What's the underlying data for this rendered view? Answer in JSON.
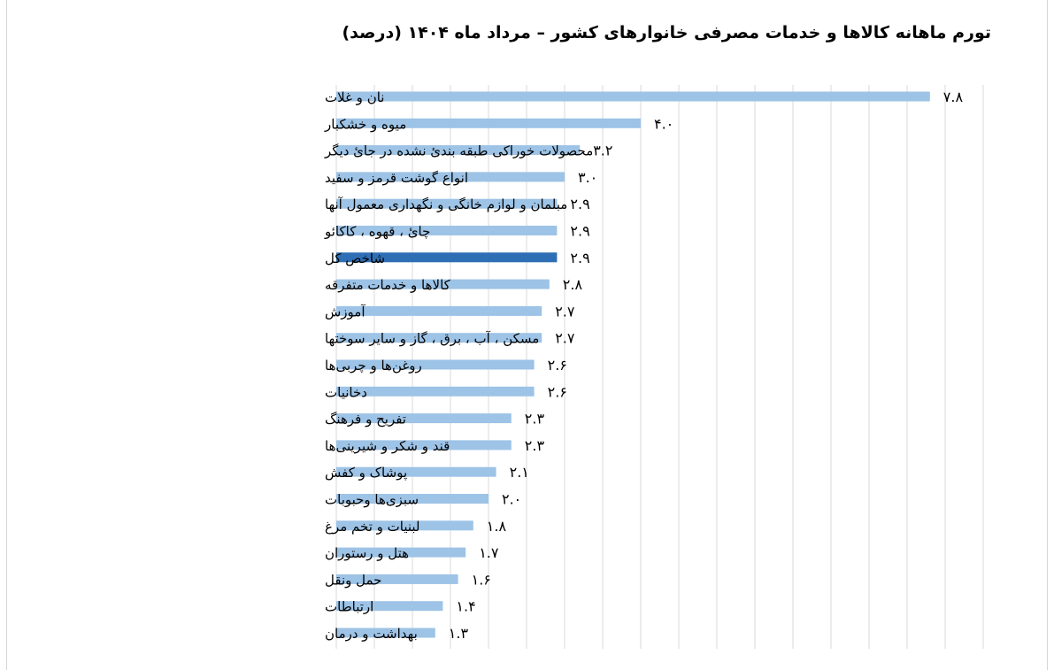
{
  "chart_data": {
    "type": "bar",
    "orientation": "horizontal",
    "title": "تورم ماهانه کالاها و خدمات مصرفی خانوارهای کشور – مرداد ماه ۱۴۰۴ (درصد)",
    "categories": [
      "نان و غلات",
      "میوه و خشکبار",
      "محصولات خوراکی طبقه بندیٔ نشده در جائ دیگر",
      "انواع گوشت قرمز و سفید",
      "مبلمان و لوازم خانگی و نگهداری معمول آنها",
      "چائ ، قهوه ، کاکائو",
      "شاخص کل",
      "کالاها و خدمات متفرقه",
      "آموزش",
      "مسکن ، آب ، برق ، گاز و سایر سوختها",
      "روغن‌ها و چربی‌ها",
      "دخانیات",
      "تفریح و فرهنگ",
      "قند و شکر و شیرینی‌ها",
      "پوشاک و کفش",
      "سبزی‌ها وحبوبات",
      "لبنیات و تخم مرغ",
      "هتل و رستوران",
      "حمل ونقل",
      "ارتباطات",
      "بهداشت و درمان"
    ],
    "values": [
      7.8,
      4.0,
      3.2,
      3.0,
      2.9,
      2.9,
      2.9,
      2.8,
      2.7,
      2.7,
      2.6,
      2.6,
      2.3,
      2.3,
      2.1,
      2.0,
      1.8,
      1.7,
      1.6,
      1.4,
      1.3
    ],
    "value_labels": [
      "۷.۸",
      "۴.۰",
      "۳.۲",
      "۳.۰",
      "۲.۹",
      "۲.۹",
      "۲.۹",
      "۲.۸",
      "۲.۷",
      "۲.۷",
      "۲.۶",
      "۲.۶",
      "۲.۳",
      "۲.۳",
      "۲.۱",
      "۲.۰",
      "۱.۸",
      "۱.۷",
      "۱.۶",
      "۱.۴",
      "۱.۳"
    ],
    "highlight_category": "شاخص کل",
    "xlim": [
      0,
      8.5
    ],
    "grid": true,
    "legend": "none",
    "colors": {
      "bar": "#9dc3e6",
      "highlight": "#2e6eb5",
      "grid": "#d9d9d9"
    }
  }
}
